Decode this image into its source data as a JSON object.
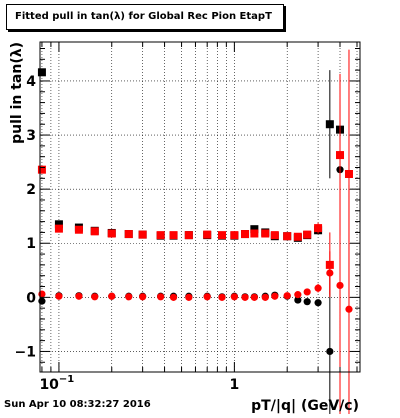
{
  "chart_data": {
    "type": "scatter",
    "title": "Fitted pull in tan(λ) for Global Rec Pion EtapT",
    "xlabel": "pT/|q| (GeV/c)",
    "ylabel": "pull in tan(λ)",
    "xscale": "log",
    "xlim": [
      0.078,
      5.2
    ],
    "ylim": [
      -1.38,
      4.72
    ],
    "grid": true,
    "x_ticks": [
      {
        "value": 0.1,
        "label": "10",
        "exp": "−1"
      },
      {
        "value": 1,
        "label": "1",
        "exp": ""
      }
    ],
    "y_ticks": [
      {
        "value": -1,
        "label": "−1"
      },
      {
        "value": 0,
        "label": "0"
      },
      {
        "value": 1,
        "label": "1"
      },
      {
        "value": 2,
        "label": "2"
      },
      {
        "value": 3,
        "label": "3"
      },
      {
        "value": 4,
        "label": "4"
      }
    ],
    "series": [
      {
        "color": "#000000",
        "marker": "square",
        "points": [
          [
            0.08,
            4.16,
            0.0
          ],
          [
            0.1,
            1.35,
            0.03
          ],
          [
            0.13,
            1.29,
            0.02
          ],
          [
            0.16,
            1.23,
            0.02
          ],
          [
            0.2,
            1.19,
            0.02
          ],
          [
            0.25,
            1.17,
            0.02
          ],
          [
            0.3,
            1.16,
            0.02
          ],
          [
            0.38,
            1.14,
            0.02
          ],
          [
            0.45,
            1.14,
            0.02
          ],
          [
            0.55,
            1.15,
            0.02
          ],
          [
            0.7,
            1.15,
            0.02
          ],
          [
            0.85,
            1.14,
            0.02
          ],
          [
            1.0,
            1.14,
            0.02
          ],
          [
            1.15,
            1.17,
            0.03
          ],
          [
            1.3,
            1.26,
            0.03
          ],
          [
            1.5,
            1.2,
            0.03
          ],
          [
            1.7,
            1.13,
            0.03
          ],
          [
            2.0,
            1.13,
            0.04
          ],
          [
            2.3,
            1.1,
            0.04
          ],
          [
            2.6,
            1.15,
            0.05
          ],
          [
            3.0,
            1.24,
            0.06
          ],
          [
            3.5,
            3.2,
            1.0
          ],
          [
            4.0,
            3.1,
            0.5
          ]
        ]
      },
      {
        "color": "#000000",
        "marker": "circle",
        "points": [
          [
            0.08,
            -0.07,
            0.0
          ],
          [
            0.1,
            0.03,
            0.02
          ],
          [
            0.13,
            0.03,
            0.02
          ],
          [
            0.16,
            0.02,
            0.02
          ],
          [
            0.2,
            0.02,
            0.02
          ],
          [
            0.25,
            0.02,
            0.02
          ],
          [
            0.3,
            0.02,
            0.02
          ],
          [
            0.38,
            0.02,
            0.02
          ],
          [
            0.45,
            0.02,
            0.02
          ],
          [
            0.55,
            0.02,
            0.02
          ],
          [
            0.7,
            0.02,
            0.02
          ],
          [
            0.85,
            0.01,
            0.02
          ],
          [
            1.0,
            0.02,
            0.02
          ],
          [
            1.15,
            0.01,
            0.03
          ],
          [
            1.3,
            0.01,
            0.03
          ],
          [
            1.5,
            0.02,
            0.03
          ],
          [
            1.7,
            0.04,
            0.03
          ],
          [
            2.0,
            0.02,
            0.04
          ],
          [
            2.3,
            -0.05,
            0.04
          ],
          [
            2.6,
            -0.08,
            0.05
          ],
          [
            3.0,
            -0.1,
            0.06
          ],
          [
            3.5,
            -1.0,
            1.5
          ],
          [
            4.0,
            2.36,
            1.2
          ]
        ]
      },
      {
        "color": "#ff0000",
        "marker": "square",
        "points": [
          [
            0.08,
            2.36,
            0.0
          ],
          [
            0.1,
            1.27,
            0.03
          ],
          [
            0.13,
            1.25,
            0.02
          ],
          [
            0.16,
            1.22,
            0.02
          ],
          [
            0.2,
            1.18,
            0.02
          ],
          [
            0.25,
            1.17,
            0.02
          ],
          [
            0.3,
            1.16,
            0.02
          ],
          [
            0.38,
            1.15,
            0.02
          ],
          [
            0.45,
            1.15,
            0.02
          ],
          [
            0.55,
            1.15,
            0.02
          ],
          [
            0.7,
            1.16,
            0.02
          ],
          [
            0.85,
            1.15,
            0.02
          ],
          [
            1.0,
            1.15,
            0.02
          ],
          [
            1.15,
            1.17,
            0.03
          ],
          [
            1.3,
            1.18,
            0.03
          ],
          [
            1.5,
            1.18,
            0.03
          ],
          [
            1.7,
            1.15,
            0.03
          ],
          [
            2.0,
            1.13,
            0.04
          ],
          [
            2.3,
            1.12,
            0.04
          ],
          [
            2.6,
            1.16,
            0.05
          ],
          [
            3.0,
            1.28,
            0.1
          ],
          [
            3.5,
            0.6,
            0.6
          ],
          [
            4.0,
            2.63,
            1.5
          ],
          [
            4.5,
            2.28,
            2.3
          ]
        ]
      },
      {
        "color": "#ff0000",
        "marker": "circle",
        "points": [
          [
            0.08,
            0.06,
            0.0
          ],
          [
            0.1,
            0.02,
            0.02
          ],
          [
            0.13,
            0.02,
            0.02
          ],
          [
            0.16,
            0.01,
            0.02
          ],
          [
            0.2,
            0.02,
            0.02
          ],
          [
            0.25,
            0.01,
            0.02
          ],
          [
            0.3,
            0.01,
            0.02
          ],
          [
            0.38,
            0.01,
            0.02
          ],
          [
            0.45,
            0.0,
            0.02
          ],
          [
            0.55,
            0.0,
            0.02
          ],
          [
            0.7,
            0.01,
            0.02
          ],
          [
            0.85,
            0.0,
            0.02
          ],
          [
            1.0,
            0.01,
            0.02
          ],
          [
            1.15,
            0.0,
            0.03
          ],
          [
            1.3,
            0.0,
            0.03
          ],
          [
            1.5,
            0.0,
            0.03
          ],
          [
            1.7,
            0.02,
            0.03
          ],
          [
            2.0,
            0.03,
            0.04
          ],
          [
            2.3,
            0.05,
            0.04
          ],
          [
            2.6,
            0.1,
            0.05
          ],
          [
            3.0,
            0.17,
            0.08
          ],
          [
            3.5,
            0.45,
            0.4
          ],
          [
            4.0,
            0.22,
            2.5
          ],
          [
            4.5,
            -0.22,
            2.3
          ]
        ]
      }
    ]
  },
  "footer_text": "Sun Apr 10 08:32:27 2016"
}
